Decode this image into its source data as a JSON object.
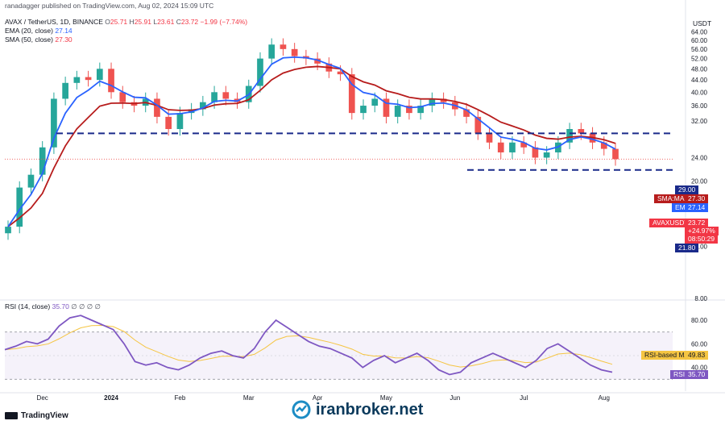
{
  "publisher": "ranadagger published on TradingView.com, Aug 02, 2024 15:09 UTC",
  "legend": {
    "symbol": "AVAX / TetherUS, 1D, BINANCE",
    "o_lbl": "O",
    "o_val": "25.71",
    "h_lbl": "H",
    "h_val": "25.91",
    "l_lbl": "L",
    "l_val": "23.61",
    "c_lbl": "C",
    "c_val": "23.72",
    "chg": "−1.99 (−7.74%)",
    "ema_lbl": "EMA (20, close)",
    "ema_val": "27.14",
    "sma_lbl": "SMA (50, close)",
    "sma_val": "27.30"
  },
  "rsi_legend": {
    "lbl": "RSI (14, close)",
    "val": "35.70",
    "extra": "∅ ∅ ∅ ∅"
  },
  "currency": "USDT",
  "tags": {
    "level_high": "29.00",
    "sma_tag": "SMA:MA",
    "sma_val": "27.30",
    "ema_tag": "EMA",
    "ema_val": "27.14",
    "sym_tag": "AVAXUSDT",
    "price": "23.72",
    "pct": "+24.97%",
    "timer": "08:50:29",
    "level_low": "21.80",
    "rsi_ma_tag": "RSI-based MA",
    "rsi_ma_val": "49.83",
    "rsi_tag": "RSI",
    "rsi_val": "35.70"
  },
  "footer": "TradingView",
  "watermark": "iranbroker.net",
  "colors": {
    "up": "#26a69a",
    "down": "#ef5350",
    "ema": "#2962ff",
    "sma": "#b71c1c",
    "level": "#1a2a8a",
    "rsi": "#7e57c2",
    "rsi_ma": "#f5c542"
  },
  "chart_data": [
    {
      "type": "candlestick",
      "title": "AVAX / TetherUS, 1D, BINANCE",
      "y_scale": "log",
      "ylim": [
        8,
        68
      ],
      "y_ticks": [
        "64.00",
        "60.00",
        "56.00",
        "52.00",
        "48.00",
        "44.00",
        "40.00",
        "36.00",
        "32.00",
        "24.00",
        "20.00",
        "16.00",
        "12.00",
        "8.00"
      ],
      "x_ticks": [
        "Dec",
        "2024",
        "Feb",
        "Mar",
        "Apr",
        "May",
        "Jun",
        "Jul",
        "Aug"
      ],
      "horizontal_levels": [
        29.0,
        21.8
      ],
      "series_close_approx": [
        {
          "date": "Nov 20",
          "value": 14
        },
        {
          "date": "Nov 25",
          "value": 19
        },
        {
          "date": "Dec 01",
          "value": 21
        },
        {
          "date": "Dec 05",
          "value": 26
        },
        {
          "date": "Dec 10",
          "value": 38
        },
        {
          "date": "Dec 15",
          "value": 43
        },
        {
          "date": "Dec 20",
          "value": 45
        },
        {
          "date": "Dec 25",
          "value": 44
        },
        {
          "date": "Dec 28",
          "value": 48
        },
        {
          "date": "Jan 01",
          "value": 40
        },
        {
          "date": "Jan 05",
          "value": 37
        },
        {
          "date": "Jan 10",
          "value": 36
        },
        {
          "date": "Jan 15",
          "value": 38
        },
        {
          "date": "Jan 20",
          "value": 33
        },
        {
          "date": "Jan 25",
          "value": 30
        },
        {
          "date": "Feb 01",
          "value": 34
        },
        {
          "date": "Feb 05",
          "value": 35
        },
        {
          "date": "Feb 10",
          "value": 37
        },
        {
          "date": "Feb 15",
          "value": 40
        },
        {
          "date": "Feb 20",
          "value": 38
        },
        {
          "date": "Feb 25",
          "value": 37
        },
        {
          "date": "Mar 01",
          "value": 42
        },
        {
          "date": "Mar 05",
          "value": 52
        },
        {
          "date": "Mar 10",
          "value": 58
        },
        {
          "date": "Mar 15",
          "value": 56
        },
        {
          "date": "Mar 20",
          "value": 53
        },
        {
          "date": "Mar 25",
          "value": 52
        },
        {
          "date": "Apr 01",
          "value": 50
        },
        {
          "date": "Apr 05",
          "value": 47
        },
        {
          "date": "Apr 10",
          "value": 46
        },
        {
          "date": "Apr 13",
          "value": 34
        },
        {
          "date": "Apr 20",
          "value": 36
        },
        {
          "date": "Apr 25",
          "value": 38
        },
        {
          "date": "May 01",
          "value": 33
        },
        {
          "date": "May 05",
          "value": 36
        },
        {
          "date": "May 10",
          "value": 34
        },
        {
          "date": "May 15",
          "value": 36
        },
        {
          "date": "May 20",
          "value": 38
        },
        {
          "date": "May 25",
          "value": 37
        },
        {
          "date": "Jun 01",
          "value": 35
        },
        {
          "date": "Jun 05",
          "value": 33
        },
        {
          "date": "Jun 10",
          "value": 29
        },
        {
          "date": "Jun 15",
          "value": 27
        },
        {
          "date": "Jun 20",
          "value": 25
        },
        {
          "date": "Jun 25",
          "value": 27
        },
        {
          "date": "Jul 01",
          "value": 26
        },
        {
          "date": "Jul 05",
          "value": 24
        },
        {
          "date": "Jul 10",
          "value": 25
        },
        {
          "date": "Jul 15",
          "value": 27
        },
        {
          "date": "Jul 20",
          "value": 30
        },
        {
          "date": "Jul 24",
          "value": 29
        },
        {
          "date": "Jul 28",
          "value": 27
        },
        {
          "date": "Aug 01",
          "value": 25.7
        },
        {
          "date": "Aug 02",
          "value": 23.72
        }
      ],
      "ema20_last": 27.14,
      "sma50_last": 27.3
    },
    {
      "type": "line",
      "title": "RSI (14, close)",
      "ylim": [
        20,
        95
      ],
      "y_ticks": [
        "80.00",
        "60.00",
        "40.00"
      ],
      "bands": [
        70,
        30
      ],
      "rsi_values": [
        55,
        58,
        62,
        60,
        64,
        75,
        82,
        84,
        80,
        76,
        72,
        60,
        45,
        42,
        44,
        40,
        38,
        42,
        48,
        52,
        54,
        50,
        48,
        56,
        70,
        80,
        74,
        68,
        62,
        58,
        56,
        52,
        48,
        40,
        46,
        50,
        44,
        48,
        52,
        46,
        38,
        34,
        36,
        44,
        48,
        52,
        48,
        44,
        40,
        46,
        56,
        60,
        54,
        48,
        42,
        38,
        36
      ],
      "rsi_ma_last": 49.83,
      "rsi_last": 35.7
    }
  ]
}
